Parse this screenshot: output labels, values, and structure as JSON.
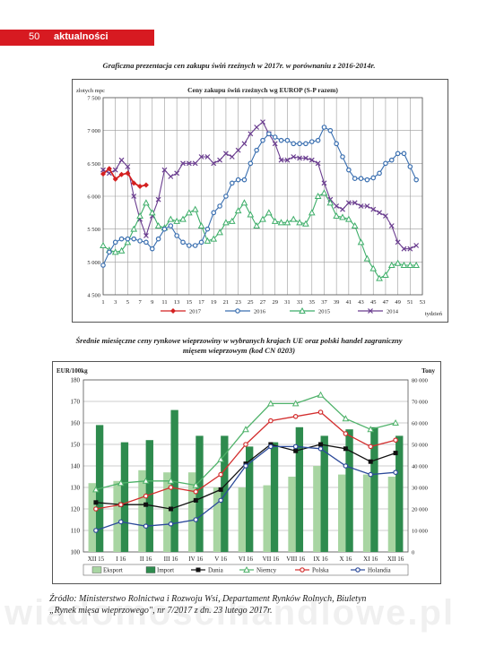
{
  "header": {
    "page_number": "50",
    "section": "aktualności"
  },
  "caption1": "Graficzna prezentacja cen zakupu świń rzeźnych w 2017r. w porównaniu z 2016-2014r.",
  "caption2_line1": "Średnie miesięczne ceny rynkowe wieprzowiny w  wybranych krajach UE oraz polski handel zagraniczny",
  "caption2_line2": "mięsem wieprzowym (kod CN 0203)",
  "source_line1": "Źródło: Ministerstwo Rolnictwa i Rozwoju Wsi, Departament Rynków Rolnych, Biuletyn",
  "source_line2": "„Rynek mięsa wieprzowego\", nr 7/2017 z dn. 23 lutego 2017r.",
  "watermark": "wiadomoscihandlowe.pl",
  "chart_data": [
    {
      "type": "line",
      "title": "Ceny zakupu świń rzeźnych  wg EUROP (S-P razem)",
      "ylabel": "złotych  mpc",
      "xlabel": "tydzień",
      "ylim": [
        4500,
        7500
      ],
      "yticks": [
        4500,
        5000,
        5500,
        6000,
        6500,
        7000,
        7500
      ],
      "ytick_labels": [
        "4 500",
        "5 000",
        "5 500",
        "6 000",
        "6 500",
        "7 000",
        "7 500"
      ],
      "xticks": [
        1,
        3,
        5,
        7,
        9,
        11,
        13,
        15,
        17,
        19,
        21,
        23,
        25,
        27,
        29,
        31,
        33,
        35,
        37,
        39,
        41,
        43,
        45,
        47,
        49,
        51,
        53
      ],
      "xlim": [
        1,
        53
      ],
      "grid": true,
      "legend": "bottom",
      "series": [
        {
          "name": "2017",
          "color": "#d42020",
          "marker": "diamond",
          "x": [
            1,
            2,
            3,
            4,
            5,
            6,
            7,
            8
          ],
          "values": [
            6340,
            6420,
            6260,
            6330,
            6350,
            6200,
            6150,
            6170
          ]
        },
        {
          "name": "2016",
          "color": "#3a6fb0",
          "marker": "circle",
          "x": [
            1,
            2,
            3,
            4,
            5,
            6,
            7,
            8,
            9,
            10,
            11,
            12,
            13,
            14,
            15,
            16,
            17,
            18,
            19,
            20,
            21,
            22,
            23,
            24,
            25,
            26,
            27,
            28,
            29,
            30,
            31,
            32,
            33,
            34,
            35,
            36,
            37,
            38,
            39,
            40,
            41,
            42,
            43,
            44,
            45,
            46,
            47,
            48,
            49,
            50,
            51,
            52
          ],
          "values": [
            4950,
            5150,
            5300,
            5350,
            5350,
            5350,
            5320,
            5300,
            5200,
            5350,
            5500,
            5550,
            5400,
            5300,
            5250,
            5250,
            5300,
            5500,
            5750,
            5850,
            6000,
            6200,
            6250,
            6250,
            6500,
            6700,
            6850,
            6950,
            6900,
            6850,
            6850,
            6800,
            6800,
            6800,
            6830,
            6850,
            7050,
            7000,
            6800,
            6600,
            6400,
            6270,
            6270,
            6250,
            6280,
            6350,
            6500,
            6550,
            6650,
            6650,
            6450,
            6250
          ]
        },
        {
          "name": "2015",
          "color": "#3fae6a",
          "marker": "triangle",
          "x": [
            1,
            2,
            3,
            4,
            5,
            6,
            7,
            8,
            9,
            10,
            11,
            12,
            13,
            14,
            15,
            16,
            17,
            18,
            19,
            20,
            21,
            22,
            23,
            24,
            25,
            26,
            27,
            28,
            29,
            30,
            31,
            32,
            33,
            34,
            35,
            36,
            37,
            38,
            39,
            40,
            41,
            42,
            43,
            44,
            45,
            46,
            47,
            48,
            49,
            50,
            51,
            52
          ],
          "values": [
            5250,
            5180,
            5150,
            5170,
            5300,
            5500,
            5700,
            5900,
            5750,
            5550,
            5520,
            5650,
            5620,
            5650,
            5750,
            5800,
            5550,
            5320,
            5350,
            5450,
            5600,
            5620,
            5780,
            5900,
            5720,
            5550,
            5650,
            5750,
            5620,
            5600,
            5600,
            5650,
            5600,
            5580,
            5750,
            6000,
            6050,
            5900,
            5700,
            5680,
            5650,
            5550,
            5300,
            5050,
            4900,
            4750,
            4800,
            4950,
            4980,
            4950,
            4950,
            4950
          ]
        },
        {
          "name": "2014",
          "color": "#6a3d8f",
          "marker": "cross",
          "x": [
            1,
            2,
            3,
            4,
            5,
            6,
            7,
            8,
            9,
            10,
            11,
            12,
            13,
            14,
            15,
            16,
            17,
            18,
            19,
            20,
            21,
            22,
            23,
            24,
            25,
            26,
            27,
            28,
            29,
            30,
            31,
            32,
            33,
            34,
            35,
            36,
            37,
            38,
            39,
            40,
            41,
            42,
            43,
            44,
            45,
            46,
            47,
            48,
            49,
            50,
            51,
            52
          ],
          "values": [
            6400,
            6350,
            6400,
            6550,
            6450,
            6000,
            5650,
            5400,
            5700,
            5950,
            6400,
            6300,
            6350,
            6500,
            6500,
            6500,
            6600,
            6600,
            6500,
            6550,
            6650,
            6600,
            6700,
            6800,
            6950,
            7050,
            7130,
            6950,
            6800,
            6550,
            6550,
            6600,
            6580,
            6580,
            6550,
            6500,
            6200,
            5950,
            5850,
            5800,
            5900,
            5900,
            5850,
            5850,
            5800,
            5750,
            5700,
            5550,
            5300,
            5200,
            5200,
            5250
          ]
        }
      ]
    },
    {
      "type": "bar",
      "title": "",
      "ylabel": "EUR/100kg",
      "y2label": "Tony",
      "ylim": [
        100,
        180
      ],
      "y2lim": [
        0,
        80000
      ],
      "yticks": [
        100,
        110,
        120,
        130,
        140,
        150,
        160,
        170,
        180
      ],
      "y2ticks": [
        0,
        10000,
        20000,
        30000,
        40000,
        50000,
        60000,
        70000,
        80000
      ],
      "y2tick_labels": [
        "0",
        "10 000",
        "20 000",
        "30 000",
        "40 000",
        "50 000",
        "60 000",
        "70 000",
        "80 000"
      ],
      "categories": [
        "XII 15",
        "I 16",
        "II 16",
        "III 16",
        "IV 16",
        "V 16",
        "VI 16",
        "VII 16",
        "VIII 16",
        "IX 16",
        "X 16",
        "XI 16",
        "XII 16"
      ],
      "grid": true,
      "legend": "bottom",
      "bar_series": [
        {
          "name": "Eksport",
          "color": "#a8d5a2",
          "axis": "right",
          "values": [
            32000,
            33000,
            38000,
            37000,
            37000,
            30000,
            30000,
            31000,
            35000,
            40000,
            36000,
            36000,
            35000
          ]
        },
        {
          "name": "Import",
          "color": "#2e8b4e",
          "axis": "right",
          "values": [
            59000,
            51000,
            52000,
            66000,
            54000,
            54000,
            49000,
            51000,
            58000,
            54000,
            57000,
            58000,
            54000
          ]
        }
      ],
      "line_series": [
        {
          "name": "Dania",
          "color": "#111111",
          "marker": "square",
          "axis": "left",
          "values": [
            123,
            122,
            122,
            120,
            124,
            129,
            141,
            150,
            147,
            150,
            148,
            142,
            146
          ]
        },
        {
          "name": "Niemcy",
          "color": "#4fb26a",
          "marker": "triangle",
          "axis": "left",
          "values": [
            129,
            132,
            133,
            133,
            131,
            143,
            157,
            169,
            169,
            173,
            162,
            157,
            160
          ]
        },
        {
          "name": "Polska",
          "color": "#d32f2f",
          "marker": "circle",
          "axis": "left",
          "values": [
            120,
            122,
            126,
            130,
            128,
            136,
            150,
            161,
            163,
            165,
            155,
            149,
            152
          ]
        },
        {
          "name": "Holandia",
          "color": "#2c4a9a",
          "marker": "circle",
          "axis": "left",
          "values": [
            110,
            114,
            112,
            113,
            115,
            124,
            140,
            149,
            149,
            148,
            140,
            136,
            137
          ]
        }
      ]
    }
  ]
}
